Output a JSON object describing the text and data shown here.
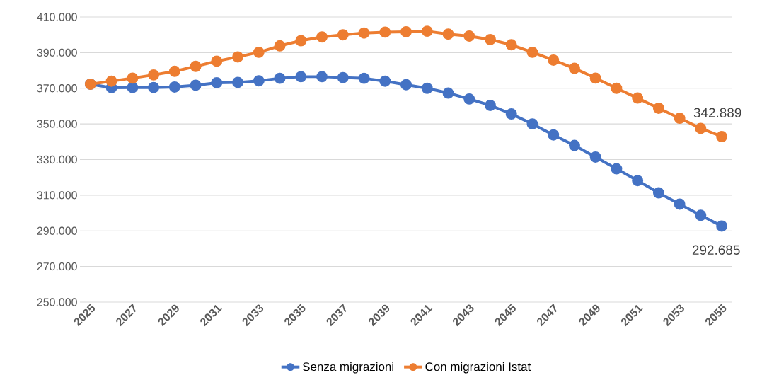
{
  "chart_data": {
    "type": "line",
    "categories": [
      "2025",
      null,
      "2027",
      null,
      "2029",
      null,
      "2031",
      null,
      "2033",
      null,
      "2035",
      null,
      "2037",
      null,
      "2039",
      null,
      "2041",
      null,
      "2043",
      null,
      "2045",
      null,
      "2047",
      null,
      "2049",
      null,
      "2051",
      null,
      "2053",
      null,
      "2055"
    ],
    "series": [
      {
        "name": "Senza migrazioni",
        "color": "#4472c4",
        "values": [
          372300,
          370300,
          370400,
          370400,
          370700,
          371700,
          373100,
          373300,
          374200,
          375600,
          376500,
          376500,
          376000,
          375600,
          374000,
          372000,
          370000,
          367300,
          364000,
          360400,
          355600,
          350000,
          343800,
          337900,
          331400,
          324800,
          318200,
          311300,
          305000,
          298700,
          292685
        ],
        "value_labels": [
          null,
          null,
          null,
          null,
          null,
          null,
          null,
          null,
          null,
          null,
          null,
          null,
          null,
          null,
          null,
          null,
          null,
          null,
          null,
          null,
          null,
          null,
          null,
          null,
          null,
          null,
          null,
          null,
          null,
          null,
          "292.685"
        ]
      },
      {
        "name": "Con migrazioni Istat",
        "color": "#ed7d31",
        "values": [
          372300,
          374000,
          375700,
          377500,
          379500,
          382300,
          385200,
          387600,
          390200,
          393800,
          396700,
          398800,
          400000,
          401000,
          401500,
          401700,
          402000,
          400400,
          399300,
          397300,
          394400,
          390200,
          385800,
          381200,
          375700,
          370000,
          364500,
          358800,
          353200,
          347500,
          342889
        ],
        "value_labels": [
          null,
          null,
          null,
          null,
          null,
          null,
          null,
          null,
          null,
          null,
          null,
          null,
          null,
          null,
          null,
          null,
          null,
          null,
          null,
          null,
          null,
          null,
          null,
          null,
          null,
          null,
          null,
          null,
          null,
          null,
          "342.889"
        ]
      }
    ],
    "ylim": [
      250000,
      410000
    ],
    "yticks": [
      {
        "value": 250000,
        "label": "250.000"
      },
      {
        "value": 270000,
        "label": "270.000"
      },
      {
        "value": 290000,
        "label": "290.000"
      },
      {
        "value": 310000,
        "label": "310.000"
      },
      {
        "value": 330000,
        "label": "330.000"
      },
      {
        "value": 350000,
        "label": "350.000"
      },
      {
        "value": 370000,
        "label": "370.000"
      },
      {
        "value": 390000,
        "label": "390.000"
      },
      {
        "value": 410000,
        "label": "410.000"
      }
    ],
    "grid": "y",
    "legend": "bottom",
    "marker": "circle",
    "line_style": "solid"
  }
}
